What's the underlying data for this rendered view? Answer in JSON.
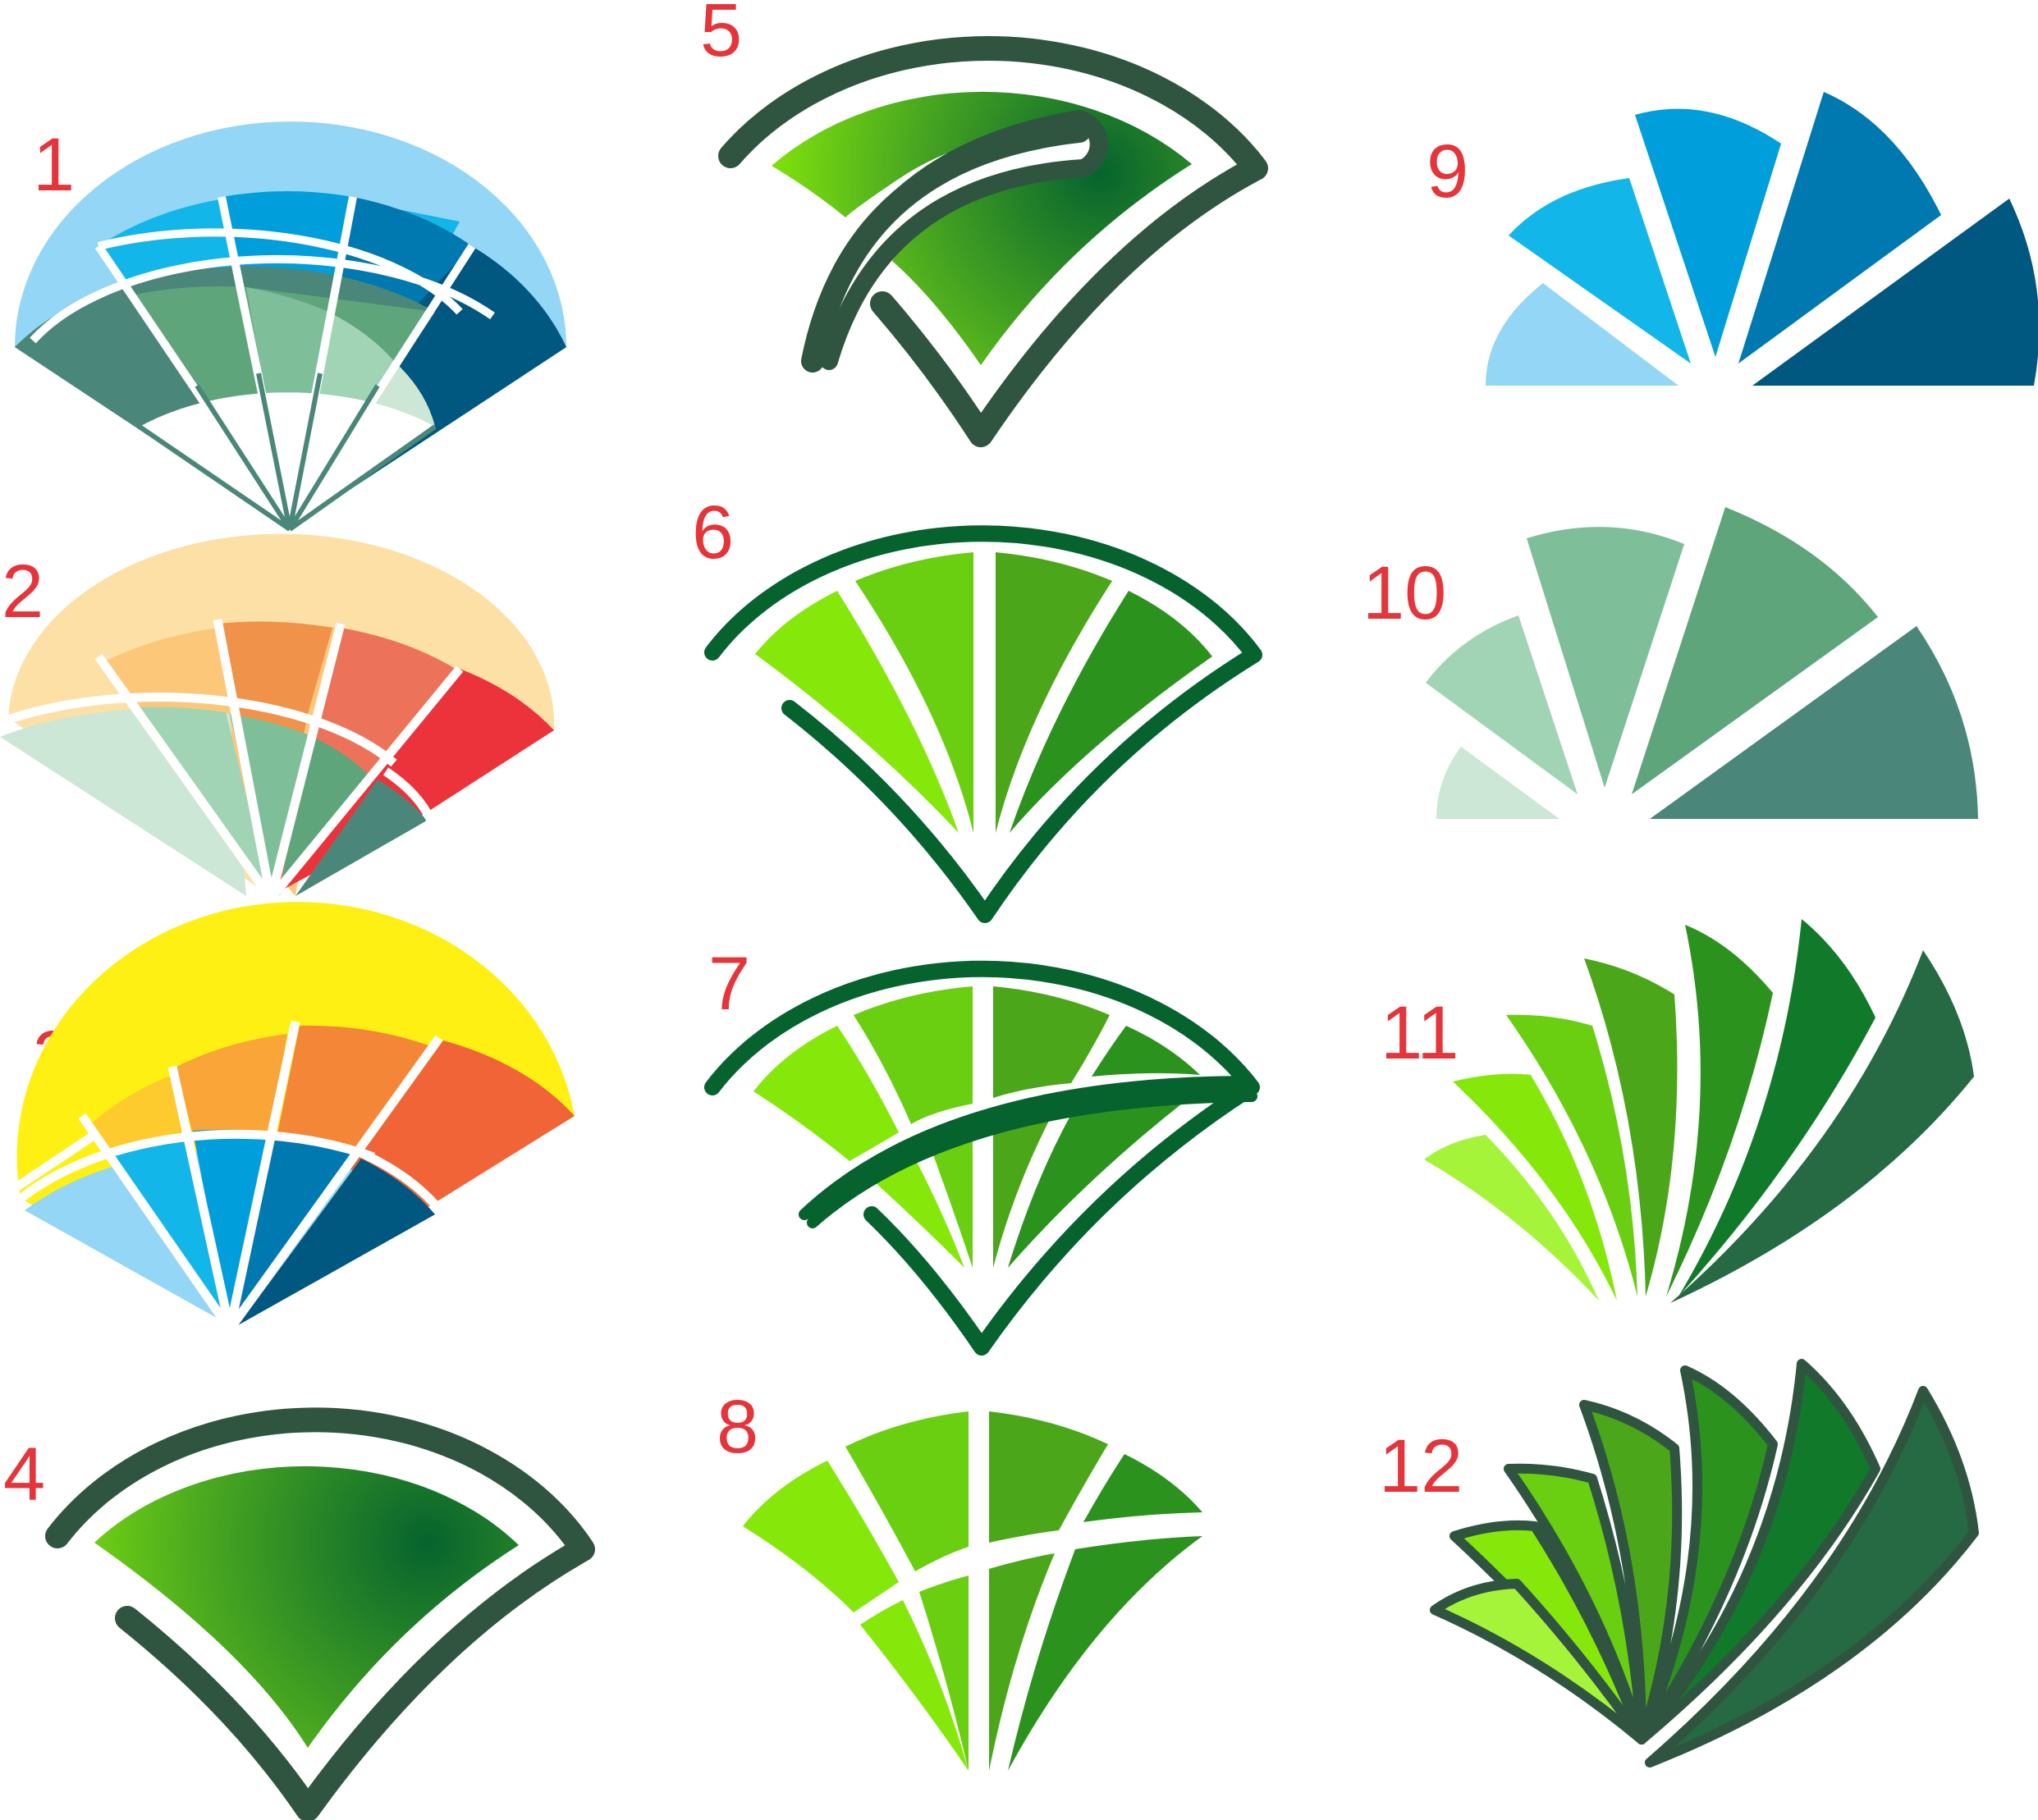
{
  "labels": {
    "n1": "1",
    "n2": "2",
    "n3": "3",
    "n4": "4",
    "n5": "5",
    "n6": "6",
    "n7": "7",
    "n8": "8",
    "n9": "9",
    "n10": "10",
    "n11": "11",
    "n12": "12"
  },
  "colors": {
    "label": "#e5343a",
    "dark_green_stroke": "#2f5541",
    "forest_stroke": "#06632e",
    "blues": [
      "#94d6f5",
      "#12b6e8",
      "#009fdc",
      "#0078b0",
      "#005780"
    ],
    "teals": [
      "#cce7d5",
      "#a1d4b4",
      "#7ebf99",
      "#5ea57c",
      "#4a877a"
    ],
    "warm": [
      "#fde0a6",
      "#fdc77a",
      "#f0924a",
      "#ec735a",
      "#ec323a"
    ],
    "sunset": [
      "#fff013",
      "#fdcb2d",
      "#faa538",
      "#f48637",
      "#f06438"
    ],
    "greens": [
      "#a6f43a",
      "#86e80a",
      "#69cf10",
      "#4ba719",
      "#2c921e",
      "#117a2a",
      "#256a42"
    ]
  }
}
